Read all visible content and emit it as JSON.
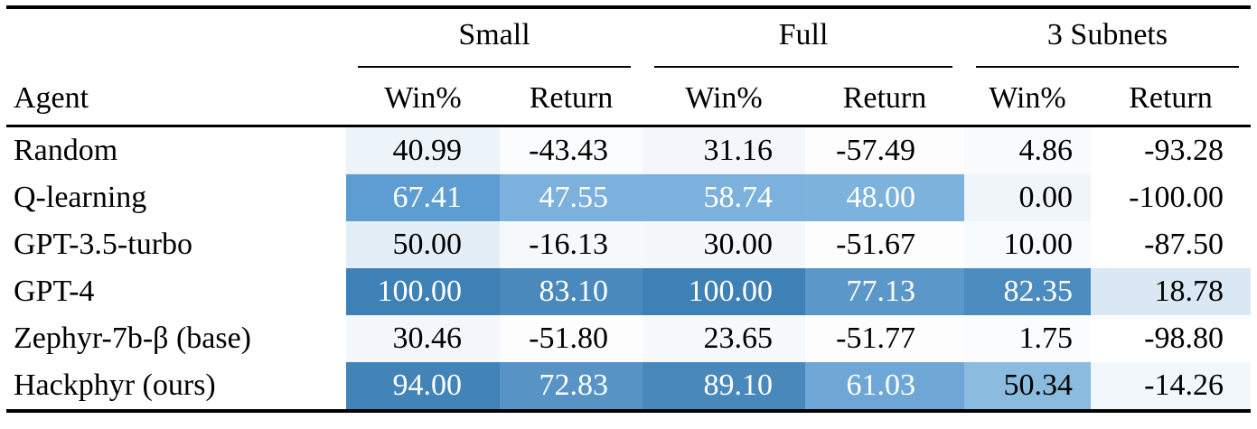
{
  "table": {
    "row_header_label": "Agent",
    "groups": [
      {
        "label": "Small"
      },
      {
        "label": "Full"
      },
      {
        "label": "3 Subnets"
      }
    ],
    "subheaders": [
      "Win%",
      "Return",
      "Win%",
      "Return",
      "Win%",
      "Return"
    ],
    "heatmap_accent": "#3e81b6",
    "rows": [
      {
        "agent": "Random",
        "cells": [
          {
            "value": "40.99",
            "bg": "#ecf3f9"
          },
          {
            "value": "-43.43",
            "bg": "#fbfcfd"
          },
          {
            "value": "31.16",
            "bg": "#f3f7fb"
          },
          {
            "value": "-57.49",
            "bg": "#fdfdfe"
          },
          {
            "value": "4.86",
            "bg": "#f9fbfd"
          },
          {
            "value": "-93.28",
            "bg": "#ffffff"
          }
        ]
      },
      {
        "agent": "Q-learning",
        "cells": [
          {
            "value": "67.41",
            "bg": "#5e9dd2",
            "fg": "#ffffff"
          },
          {
            "value": "47.55",
            "bg": "#7cb1dd",
            "fg": "#ffffff"
          },
          {
            "value": "58.74",
            "bg": "#7cb1dd",
            "fg": "#ffffff"
          },
          {
            "value": "48.00",
            "bg": "#7db2dd",
            "fg": "#ffffff"
          },
          {
            "value": "0.00",
            "bg": "#f0f5fa"
          },
          {
            "value": "-100.00",
            "bg": "#ffffff"
          }
        ]
      },
      {
        "agent": "GPT-3.5-turbo",
        "cells": [
          {
            "value": "50.00",
            "bg": "#e4eef7"
          },
          {
            "value": "-16.13",
            "bg": "#f6f9fc"
          },
          {
            "value": "30.00",
            "bg": "#f4f8fb"
          },
          {
            "value": "-51.67",
            "bg": "#fdfdfe"
          },
          {
            "value": "10.00",
            "bg": "#f8fbfd"
          },
          {
            "value": "-87.50",
            "bg": "#fefeff"
          }
        ]
      },
      {
        "agent": "GPT-4",
        "cells": [
          {
            "value": "100.00",
            "bg": "#3e81b6",
            "fg": "#ffffff"
          },
          {
            "value": "83.10",
            "bg": "#4a89bc",
            "fg": "#ffffff"
          },
          {
            "value": "100.00",
            "bg": "#3e81b6",
            "fg": "#ffffff"
          },
          {
            "value": "77.13",
            "bg": "#5b97c8",
            "fg": "#ffffff"
          },
          {
            "value": "82.35",
            "bg": "#4c8bbe",
            "fg": "#ffffff"
          },
          {
            "value": "18.78",
            "bg": "#d9e8f4"
          }
        ]
      },
      {
        "agent": "Zephyr-7b-β (base)",
        "cells": [
          {
            "value": "30.46",
            "bg": "#f3f7fb"
          },
          {
            "value": "-51.80",
            "bg": "#fdfdfe"
          },
          {
            "value": "23.65",
            "bg": "#f5f9fc"
          },
          {
            "value": "-51.77",
            "bg": "#fdfdfe"
          },
          {
            "value": "1.75",
            "bg": "#fbfcfe"
          },
          {
            "value": "-98.80",
            "bg": "#ffffff"
          }
        ]
      },
      {
        "agent": "Hackphyr (ours)",
        "cells": [
          {
            "value": "94.00",
            "bg": "#4284b8",
            "fg": "#ffffff"
          },
          {
            "value": "72.83",
            "bg": "#5793c5",
            "fg": "#ffffff"
          },
          {
            "value": "89.10",
            "bg": "#4888bb",
            "fg": "#ffffff"
          },
          {
            "value": "61.03",
            "bg": "#6ea7d5",
            "fg": "#ffffff"
          },
          {
            "value": "50.34",
            "bg": "#8cbbe0"
          },
          {
            "value": "-14.26",
            "bg": "#f2f7fb"
          }
        ]
      }
    ]
  },
  "chart_data": {
    "type": "table",
    "title": "",
    "columns": [
      "Agent",
      "Small Win%",
      "Small Return",
      "Full Win%",
      "Full Return",
      "3 Subnets Win%",
      "3 Subnets Return"
    ],
    "rows": [
      [
        "Random",
        40.99,
        -43.43,
        31.16,
        -57.49,
        4.86,
        -93.28
      ],
      [
        "Q-learning",
        67.41,
        47.55,
        58.74,
        48.0,
        0.0,
        -100.0
      ],
      [
        "GPT-3.5-turbo",
        50.0,
        -16.13,
        30.0,
        -51.67,
        10.0,
        -87.5
      ],
      [
        "GPT-4",
        100.0,
        83.1,
        100.0,
        77.13,
        82.35,
        18.78
      ],
      [
        "Zephyr-7b-β (base)",
        30.46,
        -51.8,
        23.65,
        -51.77,
        1.75,
        -98.8
      ],
      [
        "Hackphyr (ours)",
        94.0,
        72.83,
        89.1,
        61.03,
        50.34,
        -14.26
      ]
    ],
    "cell_shading": "blue heatmap, darker = higher value per table"
  }
}
